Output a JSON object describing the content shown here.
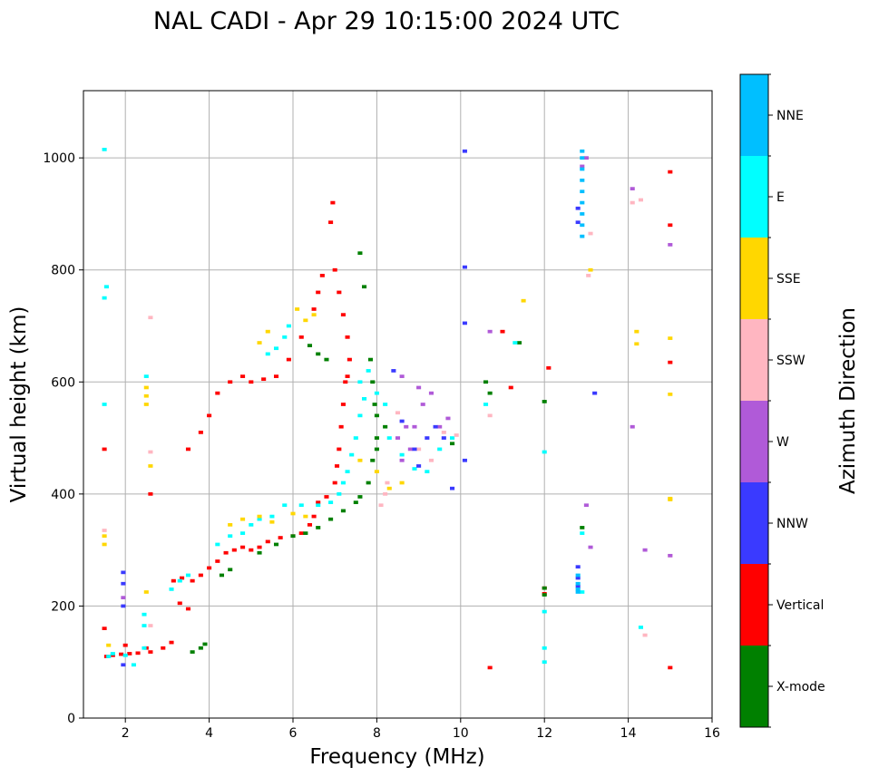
{
  "chart_data": {
    "type": "scatter",
    "title": "NAL CADI - Apr 29 10:15:00 2024 UTC",
    "xlabel": "Frequency (MHz)",
    "ylabel": "Virtual height (km)",
    "xlim": [
      1,
      16
    ],
    "ylim": [
      0,
      1120
    ],
    "xticks": [
      2,
      4,
      6,
      8,
      10,
      12,
      14,
      16
    ],
    "yticks": [
      0,
      200,
      400,
      600,
      800,
      1000
    ],
    "grid": true,
    "colorbar": {
      "label": "Azimuth Direction",
      "placement": "right",
      "categories": [
        "X-mode",
        "Vertical",
        "NNW",
        "W",
        "SSW",
        "SSE",
        "E",
        "NNE"
      ],
      "colors": {
        "X-mode": "#008000",
        "Vertical": "#ff0000",
        "NNW": "#3a3aff",
        "W": "#b05ad8",
        "SSW": "#ffb6c1",
        "SSE": "#ffd700",
        "E": "#00ffff",
        "NNE": "#00bfff"
      }
    },
    "series": [
      {
        "name": "Vertical",
        "points": [
          [
            1.55,
            110
          ],
          [
            1.7,
            112
          ],
          [
            1.9,
            114
          ],
          [
            2.1,
            115
          ],
          [
            2.3,
            116
          ],
          [
            2.6,
            118
          ],
          [
            2.9,
            125
          ],
          [
            3.1,
            135
          ],
          [
            3.15,
            245
          ],
          [
            3.35,
            250
          ],
          [
            3.6,
            245
          ],
          [
            3.8,
            255
          ],
          [
            4.0,
            268
          ],
          [
            4.2,
            280
          ],
          [
            4.4,
            295
          ],
          [
            4.6,
            300
          ],
          [
            4.8,
            305
          ],
          [
            5.0,
            300
          ],
          [
            5.2,
            305
          ],
          [
            5.4,
            315
          ],
          [
            5.7,
            322
          ],
          [
            6.0,
            325
          ],
          [
            6.2,
            330
          ],
          [
            6.4,
            345
          ],
          [
            6.5,
            360
          ],
          [
            6.6,
            385
          ],
          [
            6.8,
            395
          ],
          [
            7.0,
            420
          ],
          [
            7.05,
            450
          ],
          [
            7.1,
            480
          ],
          [
            7.15,
            520
          ],
          [
            7.2,
            560
          ],
          [
            7.25,
            600
          ],
          [
            7.3,
            610
          ],
          [
            7.35,
            640
          ],
          [
            7.3,
            680
          ],
          [
            7.2,
            720
          ],
          [
            7.1,
            760
          ],
          [
            7.0,
            800
          ],
          [
            6.9,
            885
          ],
          [
            6.95,
            920
          ],
          [
            3.5,
            480
          ],
          [
            3.8,
            510
          ],
          [
            4.0,
            540
          ],
          [
            4.2,
            580
          ],
          [
            4.5,
            600
          ],
          [
            4.8,
            610
          ],
          [
            5.0,
            600
          ],
          [
            5.3,
            605
          ],
          [
            5.6,
            610
          ],
          [
            5.9,
            640
          ],
          [
            6.2,
            680
          ],
          [
            6.5,
            730
          ],
          [
            6.6,
            760
          ],
          [
            6.7,
            790
          ],
          [
            1.5,
            480
          ],
          [
            1.5,
            160
          ],
          [
            2.0,
            130
          ],
          [
            2.6,
            400
          ],
          [
            2.5,
            125
          ],
          [
            3.3,
            205
          ],
          [
            3.5,
            195
          ],
          [
            10.7,
            90
          ],
          [
            11.0,
            690
          ],
          [
            11.2,
            590
          ],
          [
            12.1,
            625
          ],
          [
            15.0,
            975
          ],
          [
            15.0,
            880
          ],
          [
            15.0,
            635
          ],
          [
            15.0,
            90
          ],
          [
            12.0,
            222
          ],
          [
            12.0,
            232
          ]
        ]
      },
      {
        "name": "X-mode",
        "points": [
          [
            3.6,
            118
          ],
          [
            3.8,
            125
          ],
          [
            3.9,
            132
          ],
          [
            4.3,
            255
          ],
          [
            4.5,
            265
          ],
          [
            5.2,
            295
          ],
          [
            5.6,
            310
          ],
          [
            6.0,
            325
          ],
          [
            6.3,
            330
          ],
          [
            6.6,
            340
          ],
          [
            6.9,
            355
          ],
          [
            7.2,
            370
          ],
          [
            7.5,
            385
          ],
          [
            7.6,
            395
          ],
          [
            7.8,
            420
          ],
          [
            7.9,
            460
          ],
          [
            8.0,
            500
          ],
          [
            8.0,
            540
          ],
          [
            7.95,
            560
          ],
          [
            7.9,
            600
          ],
          [
            7.85,
            640
          ],
          [
            7.6,
            830
          ],
          [
            7.7,
            770
          ],
          [
            8.0,
            480
          ],
          [
            8.2,
            520
          ],
          [
            6.4,
            665
          ],
          [
            6.6,
            650
          ],
          [
            6.8,
            640
          ],
          [
            10.6,
            600
          ],
          [
            10.7,
            580
          ],
          [
            11.4,
            670
          ],
          [
            9.8,
            490
          ],
          [
            12.0,
            565
          ],
          [
            12.0,
            220
          ],
          [
            12.0,
            232
          ],
          [
            12.9,
            340
          ]
        ]
      },
      {
        "name": "E",
        "points": [
          [
            1.5,
            560
          ],
          [
            1.5,
            750
          ],
          [
            1.55,
            770
          ],
          [
            1.5,
            1015
          ],
          [
            1.6,
            110
          ],
          [
            1.7,
            115
          ],
          [
            2.0,
            112
          ],
          [
            2.2,
            95
          ],
          [
            2.45,
            125
          ],
          [
            2.45,
            165
          ],
          [
            2.45,
            185
          ],
          [
            2.5,
            610
          ],
          [
            3.1,
            230
          ],
          [
            3.3,
            245
          ],
          [
            3.5,
            255
          ],
          [
            4.2,
            310
          ],
          [
            4.5,
            325
          ],
          [
            4.8,
            330
          ],
          [
            5.0,
            345
          ],
          [
            5.2,
            355
          ],
          [
            5.5,
            360
          ],
          [
            5.8,
            380
          ],
          [
            6.2,
            380
          ],
          [
            6.6,
            380
          ],
          [
            6.9,
            385
          ],
          [
            7.1,
            400
          ],
          [
            7.2,
            420
          ],
          [
            7.3,
            440
          ],
          [
            7.4,
            470
          ],
          [
            7.5,
            500
          ],
          [
            7.6,
            540
          ],
          [
            7.7,
            570
          ],
          [
            7.6,
            600
          ],
          [
            7.8,
            620
          ],
          [
            8.0,
            580
          ],
          [
            8.2,
            560
          ],
          [
            8.3,
            500
          ],
          [
            8.6,
            470
          ],
          [
            8.9,
            445
          ],
          [
            9.2,
            440
          ],
          [
            9.5,
            480
          ],
          [
            9.8,
            500
          ],
          [
            5.9,
            700
          ],
          [
            5.8,
            680
          ],
          [
            5.6,
            660
          ],
          [
            5.4,
            650
          ],
          [
            10.6,
            560
          ],
          [
            11.3,
            670
          ],
          [
            12.0,
            475
          ],
          [
            12.0,
            125
          ],
          [
            12.0,
            100
          ],
          [
            12.0,
            190
          ],
          [
            14.3,
            162
          ],
          [
            12.9,
            330
          ],
          [
            12.9,
            225
          ]
        ]
      },
      {
        "name": "SSE",
        "points": [
          [
            1.5,
            310
          ],
          [
            1.5,
            325
          ],
          [
            2.5,
            225
          ],
          [
            2.5,
            560
          ],
          [
            2.5,
            575
          ],
          [
            2.5,
            590
          ],
          [
            2.6,
            450
          ],
          [
            4.5,
            345
          ],
          [
            4.8,
            355
          ],
          [
            5.2,
            360
          ],
          [
            5.5,
            350
          ],
          [
            6.0,
            365
          ],
          [
            6.3,
            360
          ],
          [
            5.2,
            670
          ],
          [
            5.4,
            690
          ],
          [
            6.1,
            730
          ],
          [
            6.3,
            710
          ],
          [
            6.5,
            720
          ],
          [
            7.6,
            460
          ],
          [
            8.0,
            440
          ],
          [
            8.3,
            410
          ],
          [
            8.6,
            420
          ],
          [
            11.5,
            745
          ],
          [
            13.1,
            800
          ],
          [
            14.2,
            690
          ],
          [
            14.2,
            668
          ],
          [
            15.0,
            678
          ],
          [
            15.0,
            578
          ],
          [
            15.0,
            390
          ],
          [
            15.0,
            392
          ],
          [
            1.6,
            130
          ]
        ]
      },
      {
        "name": "SSW",
        "points": [
          [
            1.5,
            335
          ],
          [
            2.6,
            715
          ],
          [
            2.6,
            475
          ],
          [
            2.6,
            165
          ],
          [
            8.1,
            380
          ],
          [
            8.2,
            400
          ],
          [
            8.25,
            420
          ],
          [
            8.5,
            545
          ],
          [
            9.0,
            480
          ],
          [
            9.3,
            460
          ],
          [
            9.6,
            510
          ],
          [
            9.9,
            505
          ],
          [
            10.7,
            540
          ],
          [
            13.1,
            865
          ],
          [
            13.05,
            790
          ],
          [
            14.1,
            920
          ],
          [
            14.4,
            148
          ],
          [
            14.3,
            925
          ],
          [
            15.0,
            290
          ]
        ]
      },
      {
        "name": "W",
        "points": [
          [
            8.5,
            500
          ],
          [
            8.7,
            520
          ],
          [
            8.9,
            520
          ],
          [
            9.1,
            560
          ],
          [
            9.3,
            580
          ],
          [
            9.5,
            520
          ],
          [
            9.7,
            535
          ],
          [
            8.8,
            480
          ],
          [
            8.6,
            460
          ],
          [
            9.0,
            590
          ],
          [
            8.6,
            610
          ],
          [
            10.7,
            690
          ],
          [
            13.0,
            1000
          ],
          [
            12.9,
            985
          ],
          [
            13.0,
            380
          ],
          [
            13.1,
            305
          ],
          [
            14.1,
            520
          ],
          [
            14.1,
            945
          ],
          [
            14.4,
            300
          ],
          [
            15.0,
            845
          ],
          [
            15.0,
            290
          ],
          [
            1.95,
            215
          ]
        ]
      },
      {
        "name": "NNW",
        "points": [
          [
            1.95,
            240
          ],
          [
            1.95,
            260
          ],
          [
            1.95,
            200
          ],
          [
            1.95,
            95
          ],
          [
            8.6,
            530
          ],
          [
            8.9,
            480
          ],
          [
            9.0,
            450
          ],
          [
            9.2,
            500
          ],
          [
            9.4,
            520
          ],
          [
            9.6,
            500
          ],
          [
            9.8,
            410
          ],
          [
            10.1,
            460
          ],
          [
            10.1,
            1012
          ],
          [
            10.1,
            805
          ],
          [
            10.1,
            705
          ],
          [
            12.8,
            910
          ],
          [
            12.8,
            885
          ],
          [
            12.8,
            250
          ],
          [
            12.8,
            235
          ],
          [
            12.8,
            270
          ],
          [
            13.2,
            580
          ],
          [
            8.4,
            620
          ]
        ]
      },
      {
        "name": "NNE",
        "points": [
          [
            12.9,
            860
          ],
          [
            12.9,
            880
          ],
          [
            12.9,
            900
          ],
          [
            12.9,
            920
          ],
          [
            12.9,
            940
          ],
          [
            12.9,
            960
          ],
          [
            12.9,
            980
          ],
          [
            12.9,
            1000
          ],
          [
            12.9,
            1012
          ],
          [
            12.8,
            225
          ],
          [
            12.8,
            240
          ],
          [
            12.8,
            255
          ],
          [
            12.8,
            230
          ]
        ]
      }
    ]
  }
}
